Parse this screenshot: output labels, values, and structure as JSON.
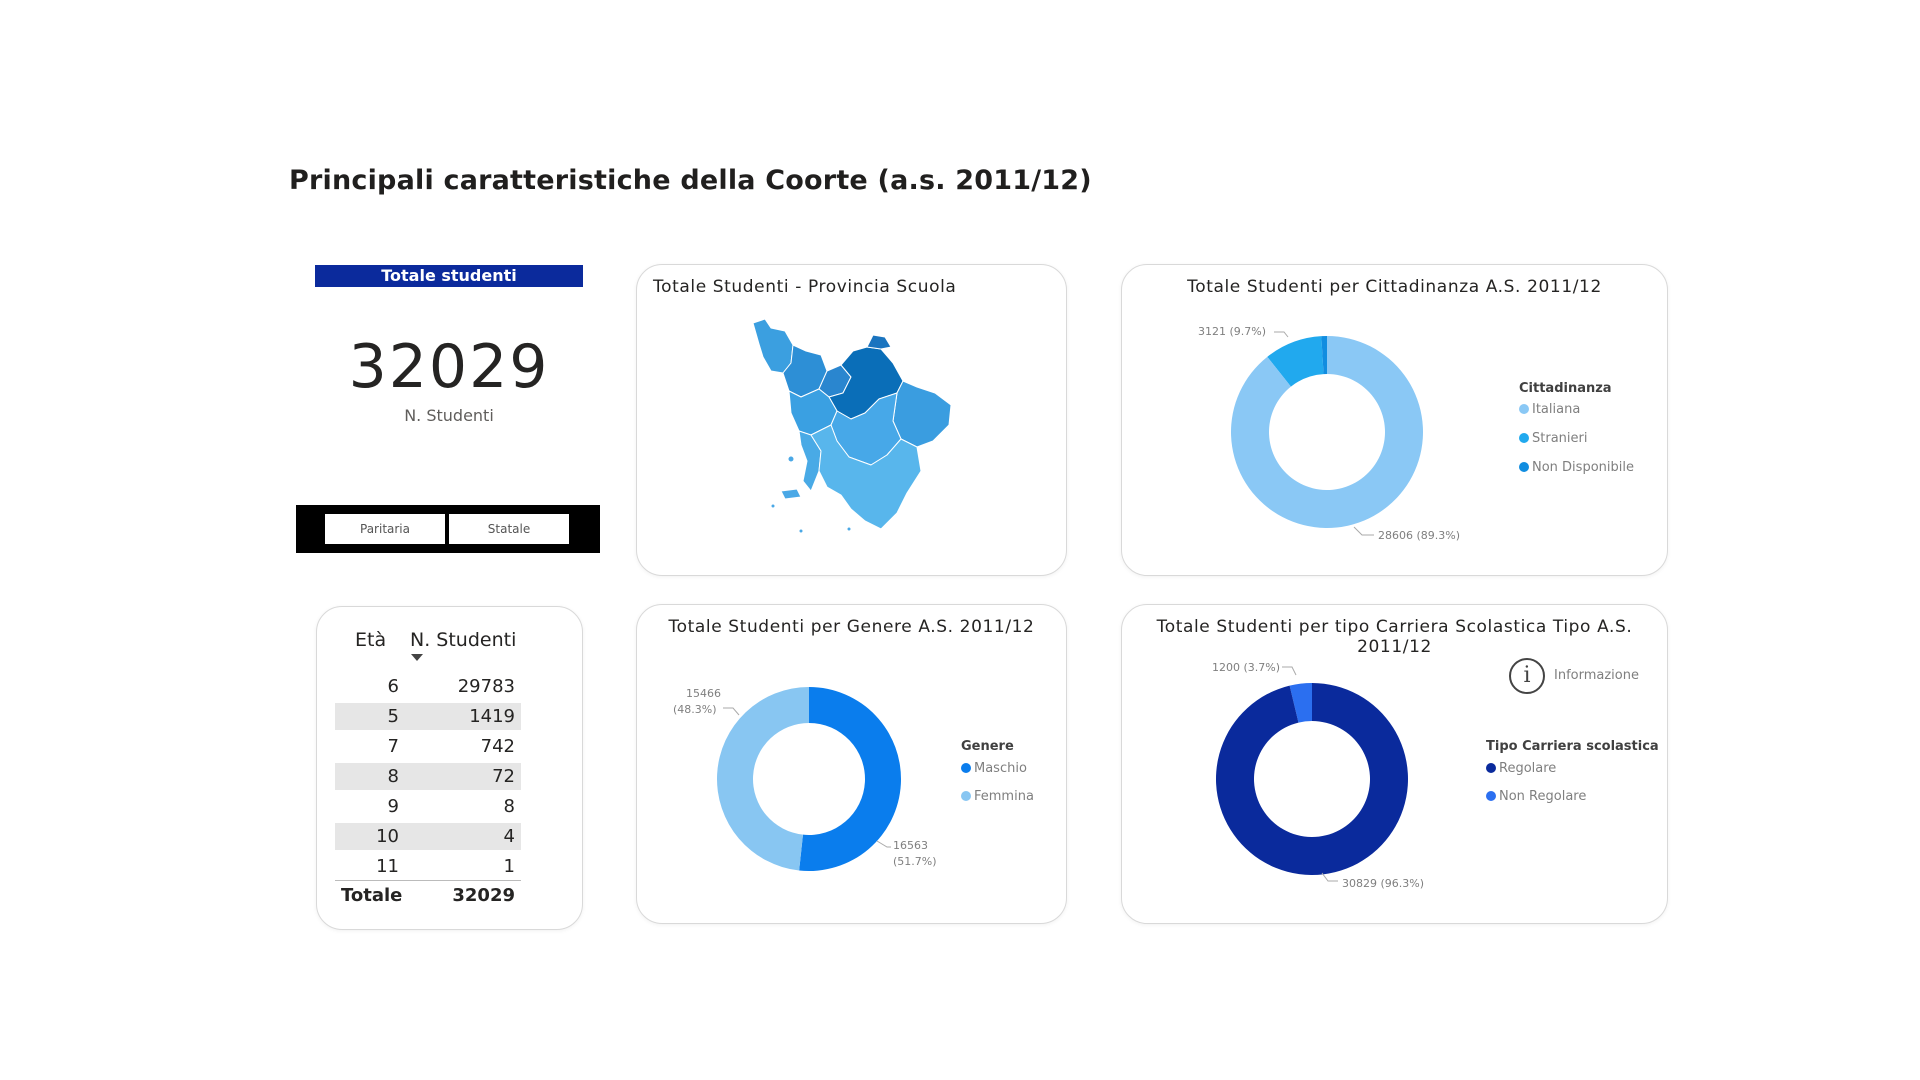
{
  "page": {
    "title": "Principali caratteristiche della Coorte (a.s. 2011/12)"
  },
  "kpi": {
    "header": "Totale studenti",
    "value": "32029",
    "label": "N. Studenti"
  },
  "slicer": {
    "options": [
      "Paritaria",
      "Statale"
    ]
  },
  "age_table": {
    "headers": [
      "Età",
      "N. Studenti"
    ],
    "rows": [
      {
        "eta": "6",
        "n": "29783"
      },
      {
        "eta": "5",
        "n": "1419"
      },
      {
        "eta": "7",
        "n": "742"
      },
      {
        "eta": "8",
        "n": "72"
      },
      {
        "eta": "9",
        "n": "8"
      },
      {
        "eta": "10",
        "n": "4"
      },
      {
        "eta": "11",
        "n": "1"
      }
    ],
    "total_label": "Totale",
    "total_value": "32029"
  },
  "map_card": {
    "title": "Totale Studenti - Provincia Scuola"
  },
  "citizenship_card": {
    "title": "Totale Studenti per Cittadinanza A.S. 2011/12",
    "legend_title": "Cittadinanza",
    "legend": [
      "Italiana",
      "Stranieri",
      "Non Disponibile"
    ],
    "label_small": "3121 (9.7%)",
    "label_large": "28606 (89.3%)"
  },
  "gender_card": {
    "title": "Totale Studenti per Genere A.S. 2011/12",
    "legend_title": "Genere",
    "legend": [
      "Maschio",
      "Femmina"
    ],
    "label_f_value": "15466",
    "label_f_pct": "(48.3%)",
    "label_m_value": "16563",
    "label_m_pct": "(51.7%)"
  },
  "career_card": {
    "title": "Totale Studenti per tipo Carriera Scolastica Tipo A.S. 2011/12",
    "info_label": "Informazione",
    "legend_title": "Tipo Carriera scolastica",
    "legend": [
      "Regolare",
      "Non Regolare"
    ],
    "label_small": "1200 (3.7%)",
    "label_large": "30829 (96.3%)"
  },
  "colors": {
    "kpi_header": "#0b2a9c",
    "italiana": "#8ac8f5",
    "stranieri": "#21a9ee",
    "non_disponibile": "#118de0",
    "maschio": "#0a7ded",
    "femmina": "#88c6f2",
    "regolare": "#0a2a9c",
    "non_regolare": "#2b6ff0"
  },
  "chart_data": [
    {
      "type": "pie",
      "title": "Totale Studenti per Cittadinanza A.S. 2011/12",
      "categories": [
        "Italiana",
        "Stranieri",
        "Non Disponibile"
      ],
      "values": [
        28606,
        3121,
        302
      ],
      "legend": "right"
    },
    {
      "type": "pie",
      "title": "Totale Studenti per Genere A.S. 2011/12",
      "categories": [
        "Maschio",
        "Femmina"
      ],
      "values": [
        16563,
        15466
      ],
      "legend": "right"
    },
    {
      "type": "pie",
      "title": "Totale Studenti per tipo Carriera Scolastica Tipo A.S. 2011/12",
      "categories": [
        "Regolare",
        "Non Regolare"
      ],
      "values": [
        30829,
        1200
      ],
      "legend": "right"
    }
  ]
}
